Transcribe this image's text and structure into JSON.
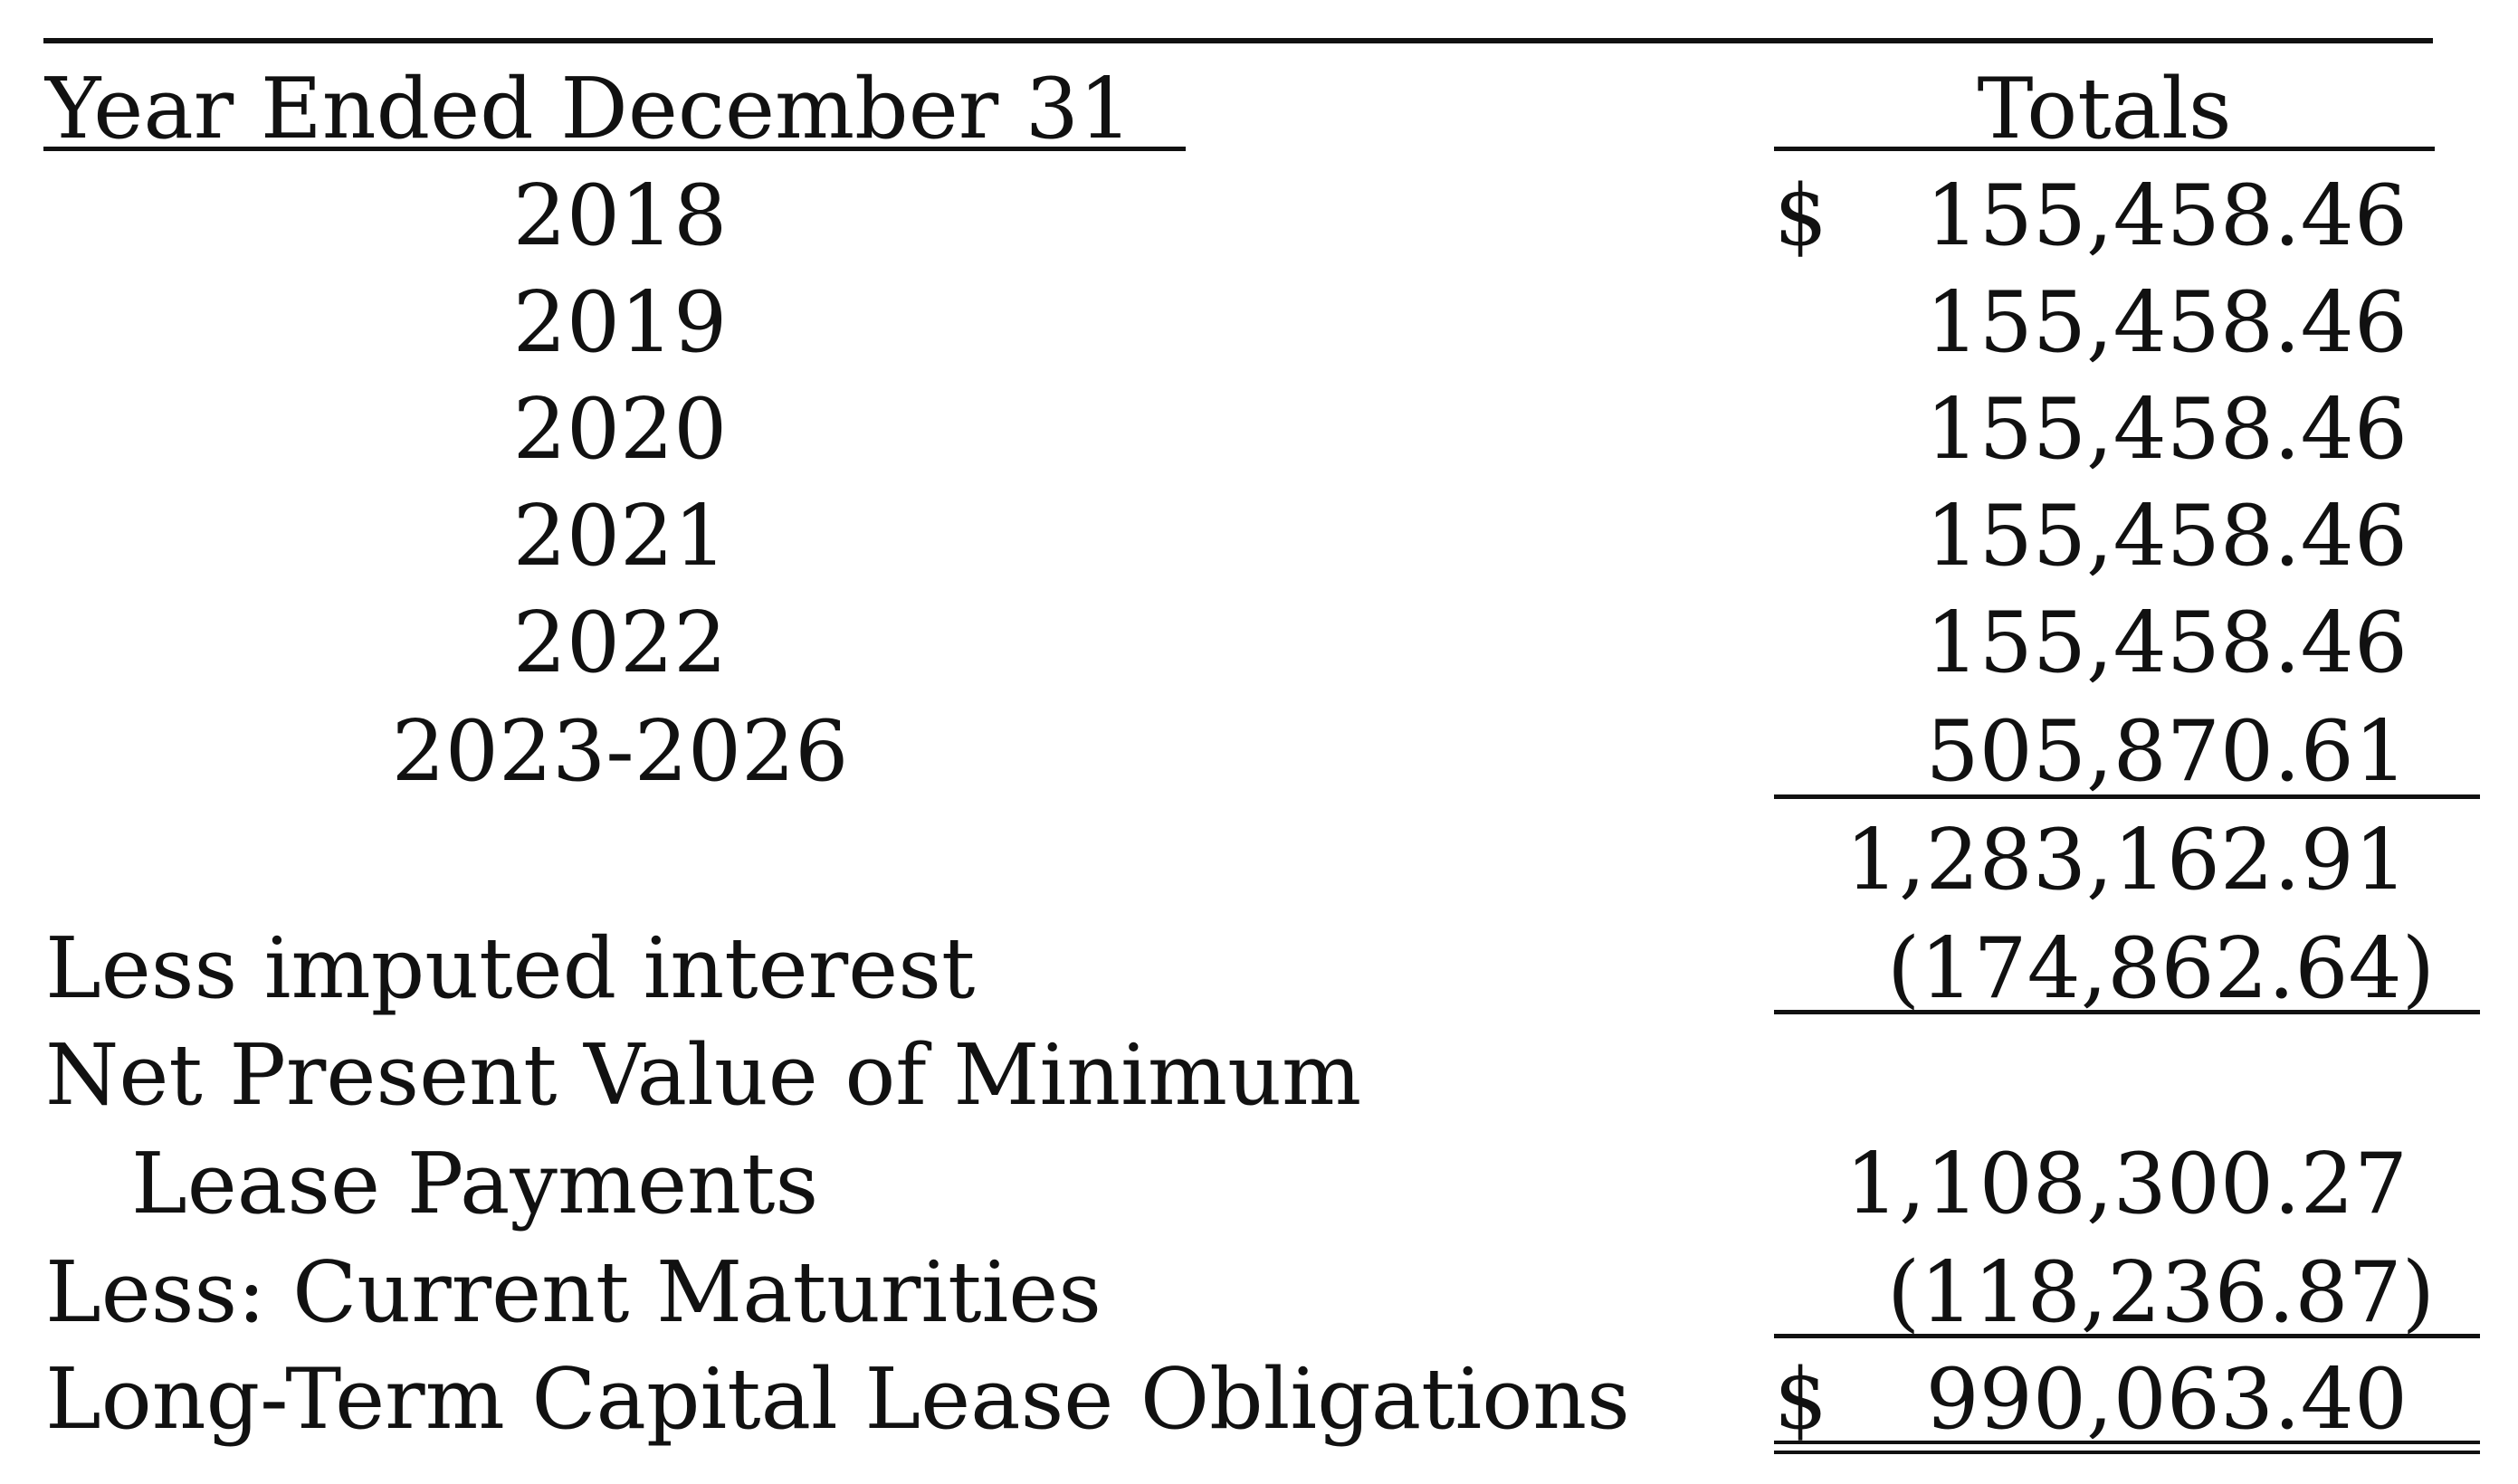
{
  "header": {
    "year_label": "Year Ended December 31",
    "totals_label": "Totals"
  },
  "currency_symbol": "$",
  "schedule": [
    {
      "year": "2018",
      "amount": "155,458.46"
    },
    {
      "year": "2019",
      "amount": "155,458.46"
    },
    {
      "year": "2020",
      "amount": "155,458.46"
    },
    {
      "year": "2021",
      "amount": "155,458.46"
    },
    {
      "year": "2022",
      "amount": "155,458.46"
    },
    {
      "year": "2023-2026",
      "amount": "505,870.61"
    }
  ],
  "subtotal": "1,283,162.91",
  "imputed_interest": {
    "label": "Less imputed interest",
    "amount": "(174,862.64)"
  },
  "npv": {
    "label_line1": "Net Present Value of Minimum",
    "label_line2": "Lease Payments",
    "amount": "1,108,300.27"
  },
  "current_maturities": {
    "label": "Less: Current Maturities",
    "amount": "(118,236.87)"
  },
  "long_term": {
    "label": "Long-Term Capital Lease Obligations",
    "amount": "990,063.40"
  }
}
